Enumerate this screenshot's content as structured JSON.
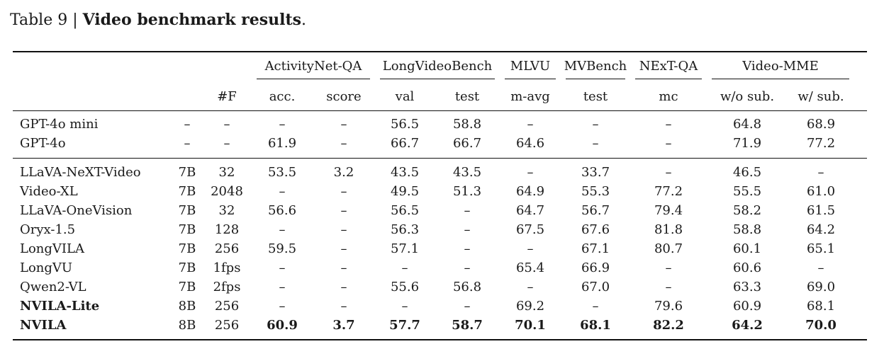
{
  "caption": {
    "prefix": "Table 9 |",
    "title": "Video benchmark results",
    "suffix": "."
  },
  "groups": [
    {
      "label": "ActivityNet-QA",
      "span": 2
    },
    {
      "label": "LongVideoBench",
      "span": 2
    },
    {
      "label": "MLVU",
      "span": 1
    },
    {
      "label": "MVBench",
      "span": 1
    },
    {
      "label": "NExT-QA",
      "span": 1
    },
    {
      "label": "Video-MME",
      "span": 2
    }
  ],
  "columns": [
    "",
    "",
    "#F",
    "acc.",
    "score",
    "val",
    "test",
    "m-avg",
    "test",
    "mc",
    "w/o sub.",
    "w/ sub."
  ],
  "sections": [
    [
      {
        "name": "GPT-4o mini",
        "size": "–",
        "frames": "–",
        "values": [
          "–",
          "–",
          "56.5",
          "58.8",
          "–",
          "–",
          "–",
          "64.8",
          "68.9"
        ],
        "bold": false
      },
      {
        "name": "GPT-4o",
        "size": "–",
        "frames": "–",
        "values": [
          "61.9",
          "–",
          "66.7",
          "66.7",
          "64.6",
          "–",
          "–",
          "71.9",
          "77.2"
        ],
        "bold": false
      }
    ],
    [
      {
        "name": "LLaVA-NeXT-Video",
        "size": "7B",
        "frames": "32",
        "values": [
          "53.5",
          "3.2",
          "43.5",
          "43.5",
          "–",
          "33.7",
          "–",
          "46.5",
          "–"
        ],
        "bold": false
      },
      {
        "name": "Video-XL",
        "size": "7B",
        "frames": "2048",
        "values": [
          "–",
          "–",
          "49.5",
          "51.3",
          "64.9",
          "55.3",
          "77.2",
          "55.5",
          "61.0"
        ],
        "bold": false
      },
      {
        "name": "LLaVA-OneVision",
        "size": "7B",
        "frames": "32",
        "values": [
          "56.6",
          "–",
          "56.5",
          "–",
          "64.7",
          "56.7",
          "79.4",
          "58.2",
          "61.5"
        ],
        "bold": false
      },
      {
        "name": "Oryx-1.5",
        "size": "7B",
        "frames": "128",
        "values": [
          "–",
          "–",
          "56.3",
          "–",
          "67.5",
          "67.6",
          "81.8",
          "58.8",
          "64.2"
        ],
        "bold": false
      },
      {
        "name": "LongVILA",
        "size": "7B",
        "frames": "256",
        "values": [
          "59.5",
          "–",
          "57.1",
          "–",
          "–",
          "67.1",
          "80.7",
          "60.1",
          "65.1"
        ],
        "bold": false
      },
      {
        "name": "LongVU",
        "size": "7B",
        "frames": "1fps",
        "values": [
          "–",
          "–",
          "–",
          "–",
          "65.4",
          "66.9",
          "–",
          "60.6",
          "–"
        ],
        "bold": false
      },
      {
        "name": "Qwen2-VL",
        "size": "7B",
        "frames": "2fps",
        "values": [
          "–",
          "–",
          "55.6",
          "56.8",
          "–",
          "67.0",
          "–",
          "63.3",
          "69.0"
        ],
        "bold": false
      },
      {
        "name": "NVILA-Lite",
        "size": "8B",
        "frames": "256",
        "values": [
          "–",
          "–",
          "–",
          "–",
          "69.2",
          "–",
          "79.6",
          "60.9",
          "68.1"
        ],
        "bold": false,
        "name_bold": true
      },
      {
        "name": "NVILA",
        "size": "8B",
        "frames": "256",
        "values": [
          "60.9",
          "3.7",
          "57.7",
          "58.7",
          "70.1",
          "68.1",
          "82.2",
          "64.2",
          "70.0"
        ],
        "bold": true,
        "name_bold": true
      }
    ]
  ]
}
